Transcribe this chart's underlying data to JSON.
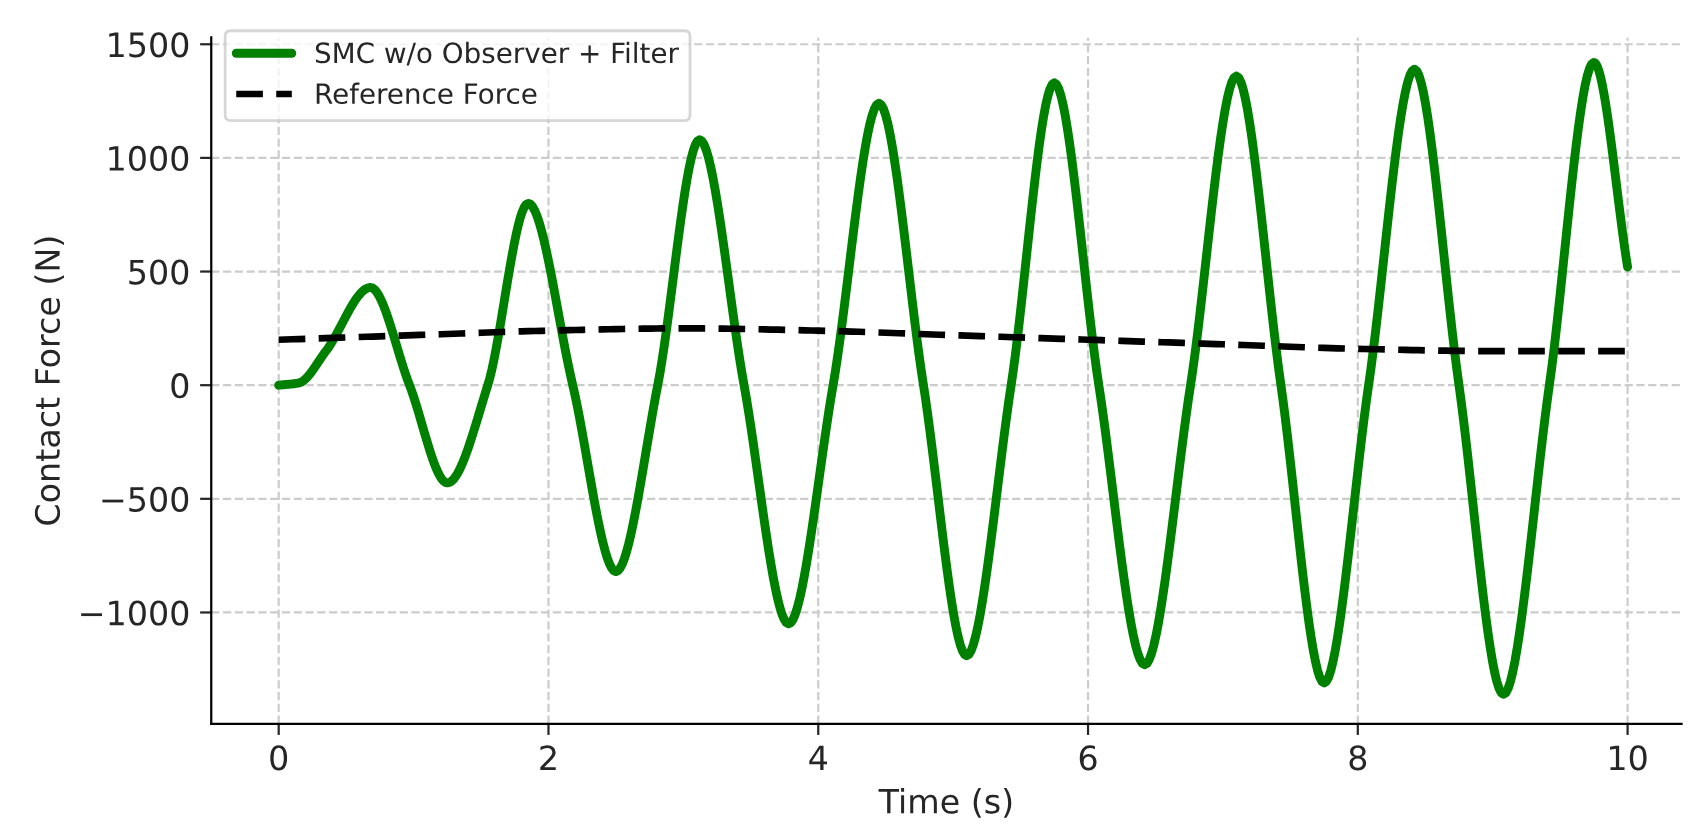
{
  "chart_data": {
    "type": "line",
    "xlabel": "Time (s)",
    "ylabel": "Contact Force (N)",
    "xlim": [
      -0.5,
      10.4
    ],
    "ylim": [
      -1490,
      1530
    ],
    "xticks": [
      0,
      2,
      4,
      6,
      8,
      10
    ],
    "yticks": [
      {
        "value": -1000,
        "label": "−1000"
      },
      {
        "value": -500,
        "label": "−500"
      },
      0,
      500,
      1000,
      1500
    ],
    "grid": true,
    "legend": "top left",
    "marker": "none",
    "series": [
      {
        "name": "SMC w/o Observer + Filter",
        "color": "#008000",
        "line_style": "solid",
        "x": [
          0,
          0.15,
          0.35,
          0.68,
          0.97,
          1.25,
          1.55,
          1.85,
          2.18,
          2.5,
          2.81,
          3.12,
          3.45,
          3.78,
          4.11,
          4.45,
          4.78,
          5.1,
          5.43,
          5.75,
          6.08,
          6.42,
          6.76,
          7.1,
          7.43,
          7.75,
          8.08,
          8.42,
          8.75,
          9.08,
          9.42,
          9.75,
          10
        ],
        "values": [
          0,
          10,
          150,
          430,
          0,
          -430,
          0,
          800,
          0,
          -820,
          0,
          1080,
          0,
          -1050,
          0,
          1240,
          0,
          -1190,
          0,
          1330,
          0,
          -1230,
          0,
          1360,
          0,
          -1310,
          0,
          1390,
          0,
          -1360,
          0,
          1420,
          520
        ]
      },
      {
        "name": "Reference Force",
        "color": "#000000",
        "line_style": "dashed",
        "x": [
          0,
          1,
          2,
          3,
          4,
          5,
          6,
          7,
          8,
          9,
          10
        ],
        "values": [
          200,
          220,
          240,
          250,
          240,
          220,
          200,
          180,
          160,
          150,
          150
        ]
      }
    ]
  }
}
